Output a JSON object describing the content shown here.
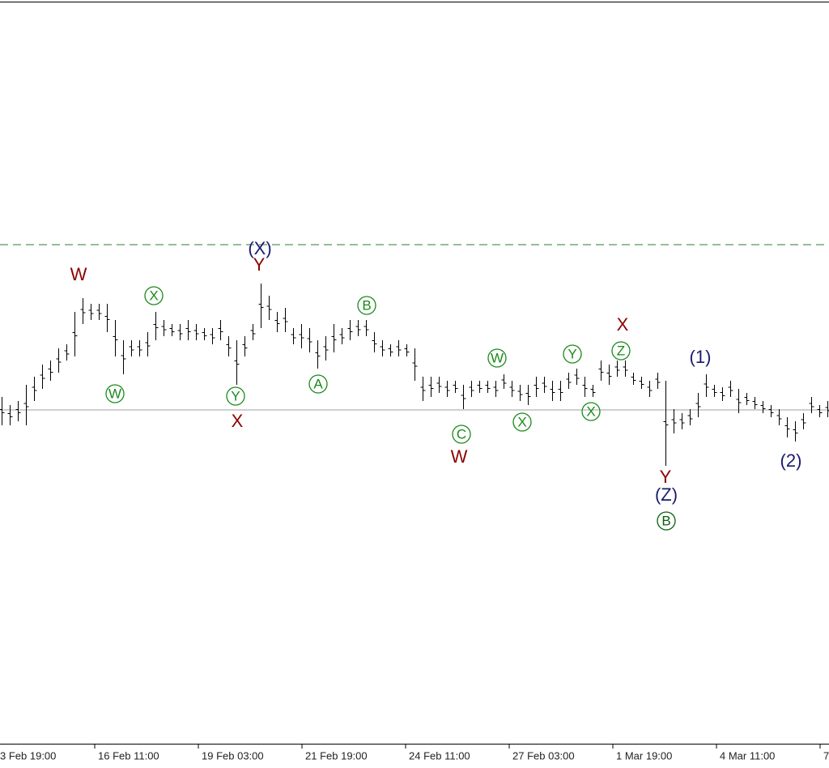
{
  "chart_data": {
    "type": "ohlc",
    "color": "#000000",
    "xlim": [
      -0.2,
      102.2
    ],
    "ylim": [
      0,
      918
    ],
    "high": [
      428,
      418,
      423,
      443,
      453,
      468,
      473,
      488,
      493,
      533,
      550,
      543,
      543,
      543,
      523,
      498,
      498,
      498,
      508,
      533,
      523,
      518,
      518,
      523,
      518,
      513,
      513,
      523,
      503,
      498,
      503,
      518,
      568,
      553,
      533,
      538,
      513,
      518,
      513,
      498,
      503,
      518,
      513,
      523,
      523,
      523,
      508,
      498,
      493,
      498,
      493,
      488,
      453,
      453,
      453,
      448,
      448,
      443,
      448,
      448,
      448,
      448,
      456,
      448,
      443,
      443,
      453,
      453,
      448,
      448,
      458,
      463,
      453,
      443,
      473,
      468,
      473,
      473,
      458,
      453,
      448,
      458,
      448,
      413,
      408,
      413,
      433,
      456,
      443,
      440,
      448,
      438,
      433,
      428,
      423,
      418,
      413,
      403,
      398,
      408,
      428,
      418,
      423
    ],
    "low": [
      393,
      393,
      398,
      393,
      423,
      438,
      448,
      458,
      473,
      478,
      518,
      523,
      523,
      508,
      478,
      456,
      478,
      478,
      478,
      498,
      503,
      503,
      498,
      498,
      498,
      498,
      493,
      498,
      478,
      443,
      478,
      498,
      513,
      523,
      508,
      508,
      493,
      488,
      483,
      463,
      473,
      483,
      493,
      498,
      503,
      503,
      483,
      478,
      478,
      478,
      478,
      448,
      423,
      428,
      433,
      428,
      433,
      413,
      428,
      433,
      433,
      428,
      438,
      428,
      423,
      418,
      428,
      433,
      423,
      423,
      438,
      443,
      428,
      428,
      448,
      443,
      453,
      453,
      443,
      438,
      428,
      438,
      343,
      383,
      388,
      393,
      403,
      428,
      428,
      423,
      428,
      408,
      418,
      413,
      408,
      403,
      393,
      378,
      373,
      388,
      408,
      403,
      403
    ],
    "xticks": [
      {
        "value": -0.6,
        "label": "3 Feb 19:00"
      },
      {
        "value": 11.5,
        "label": "16 Feb 11:00"
      },
      {
        "value": 24.3,
        "label": "19 Feb 03:00"
      },
      {
        "value": 37.1,
        "label": "21 Feb 19:00"
      },
      {
        "value": 49.9,
        "label": "24 Feb 11:00"
      },
      {
        "value": 62.7,
        "label": "27 Feb 03:00"
      },
      {
        "value": 75.5,
        "label": "1 Mar 19:00"
      },
      {
        "value": 88.3,
        "label": "4 Mar 11:00"
      },
      {
        "value": 101.1,
        "label": "7"
      }
    ],
    "hlines": [
      {
        "value": 412,
        "color": "#a0a0a0",
        "dashed": false
      },
      {
        "value": 616,
        "color": "#2e7d32",
        "dashed": true
      }
    ],
    "annotations": [
      {
        "text": "W",
        "color": "#8b0000",
        "circled": false,
        "x": 9.5,
        "y": 578
      },
      {
        "text": "X",
        "color": "#1a8a1a",
        "circled": true,
        "x": 18.8,
        "y": 553
      },
      {
        "text": "W",
        "color": "#1a8a1a",
        "circled": true,
        "x": 14.0,
        "y": 432
      },
      {
        "text": "(X)",
        "color": "#1a1a6e",
        "circled": false,
        "x": 31.9,
        "y": 610
      },
      {
        "text": "Y",
        "color": "#8b0000",
        "circled": false,
        "x": 31.8,
        "y": 590
      },
      {
        "text": "Y",
        "color": "#1a8a1a",
        "circled": true,
        "x": 28.9,
        "y": 429
      },
      {
        "text": "X",
        "color": "#8b0000",
        "circled": false,
        "x": 29.1,
        "y": 397
      },
      {
        "text": "B",
        "color": "#1a8a1a",
        "circled": true,
        "x": 45.1,
        "y": 541
      },
      {
        "text": "A",
        "color": "#1a8a1a",
        "circled": true,
        "x": 39.1,
        "y": 444
      },
      {
        "text": "C",
        "color": "#1a8a1a",
        "circled": true,
        "x": 56.8,
        "y": 382
      },
      {
        "text": "W",
        "color": "#8b0000",
        "circled": false,
        "x": 56.5,
        "y": 353
      },
      {
        "text": "W",
        "color": "#1a8a1a",
        "circled": true,
        "x": 61.2,
        "y": 476
      },
      {
        "text": "X",
        "color": "#1a8a1a",
        "circled": true,
        "x": 64.3,
        "y": 397
      },
      {
        "text": "Y",
        "color": "#1a8a1a",
        "circled": true,
        "x": 70.5,
        "y": 481
      },
      {
        "text": "X",
        "color": "#1a8a1a",
        "circled": true,
        "x": 72.8,
        "y": 410
      },
      {
        "text": "Z",
        "color": "#1a8a1a",
        "circled": true,
        "x": 76.5,
        "y": 485
      },
      {
        "text": "X",
        "color": "#8b0000",
        "circled": false,
        "x": 76.7,
        "y": 516
      },
      {
        "text": "(1)",
        "color": "#1a1a6e",
        "circled": false,
        "x": 86.3,
        "y": 476
      },
      {
        "text": "Y",
        "color": "#8b0000",
        "circled": false,
        "x": 82.0,
        "y": 328
      },
      {
        "text": "(Z)",
        "color": "#1a1a6e",
        "circled": false,
        "x": 82.1,
        "y": 306
      },
      {
        "text": "B",
        "color": "#0b5e0b",
        "circled": true,
        "x": 82.1,
        "y": 275
      },
      {
        "text": "(2)",
        "color": "#1a1a6e",
        "circled": false,
        "x": 97.5,
        "y": 348
      }
    ]
  }
}
